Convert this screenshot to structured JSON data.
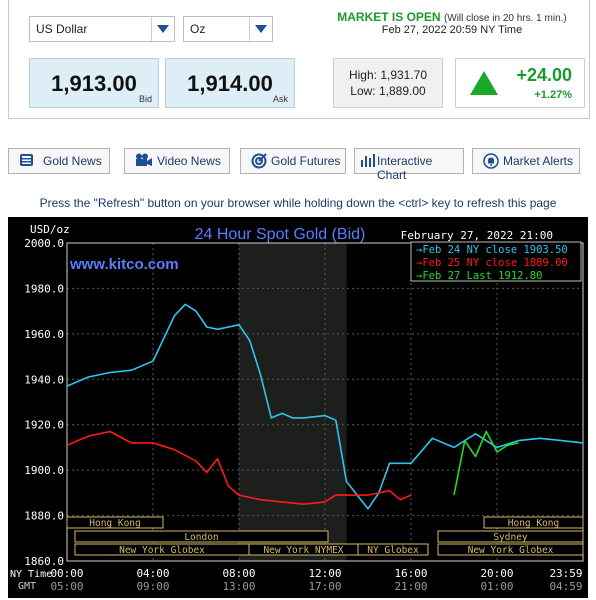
{
  "selectors": {
    "currency": "US Dollar",
    "unit": "Oz"
  },
  "market": {
    "status": "MARKET IS OPEN",
    "status_note": "(Will close in 20 hrs. 1 min.)",
    "time": "Feb 27, 2022 20:59 NY Time"
  },
  "bid": {
    "value": "1,913.00",
    "label": "Bid"
  },
  "ask": {
    "value": "1,914.00",
    "label": "Ask"
  },
  "range": {
    "high": "High: 1,931.70",
    "low": "Low: 1,889.00"
  },
  "change": {
    "abs": "+24.00",
    "pct": "+1.27%",
    "color": "#1a9a2a"
  },
  "nav": [
    {
      "label": "Gold News",
      "icon": "newspaper-icon"
    },
    {
      "label": "Video News",
      "icon": "video-camera-icon"
    },
    {
      "label": "Gold Futures",
      "icon": "target-icon"
    },
    {
      "label": "Interactive Chart",
      "icon": "bar-chart-icon"
    },
    {
      "label": "Market Alerts",
      "icon": "bell-icon"
    }
  ],
  "instruction": "Press the \"Refresh\" button on your browser while holding down the <ctrl> key to refresh this page",
  "chart_data": {
    "type": "line",
    "title": "24 Hour Spot Gold (Bid)",
    "watermark": "www.kitco.com",
    "unit_label": "USD/oz",
    "date_label": "February 27, 2022 21:00",
    "ylim": [
      1860,
      2000
    ],
    "y_ticks": [
      "2000.0",
      "1980.0",
      "1960.0",
      "1940.0",
      "1920.0",
      "1900.0",
      "1880.0",
      "1860.0"
    ],
    "x_label_ny": "NY Time",
    "x_label_gmt": "GMT",
    "x_ticks_ny": [
      "00:00",
      "04:00",
      "08:00",
      "12:00",
      "16:00",
      "20:00",
      "23:59"
    ],
    "x_ticks_gmt": [
      "05:00",
      "09:00",
      "13:00",
      "17:00",
      "21:00",
      "01:00",
      "04:59"
    ],
    "legend": [
      {
        "text": "Feb 24 NY close 1903.50",
        "color": "#2ec5ee"
      },
      {
        "text": "Feb 25 NY close 1889.00",
        "color": "#ff1a1a"
      },
      {
        "text": "Feb 27 Last 1912.80",
        "color": "#22dd22"
      }
    ],
    "sessions": [
      "Hong Kong",
      "London",
      "New York Globex",
      "New York NYMEX",
      "NY Globex",
      "Hong Kong",
      "Sydney",
      "New York Globex"
    ],
    "series": [
      {
        "name": "Feb 24 NY close 1903.50",
        "color": "#2ec5ee",
        "x": [
          0,
          1,
          2,
          3,
          4,
          5,
          5.5,
          6,
          6.5,
          7,
          8,
          8.5,
          9,
          9.5,
          10,
          10.5,
          11,
          12,
          12.5,
          13,
          14,
          14.5,
          15,
          15.5,
          16,
          17,
          18,
          19,
          20,
          21,
          22,
          23,
          24
        ],
        "y": [
          1937,
          1941,
          1943,
          1944,
          1948,
          1968,
          1973,
          1970,
          1963,
          1962,
          1964,
          1957,
          1942,
          1923,
          1925,
          1923,
          1923,
          1924,
          1922,
          1895,
          1883,
          1890,
          1903,
          1903,
          1903,
          1914,
          1910,
          1916,
          1910,
          1913,
          1914,
          1913,
          1912
        ]
      },
      {
        "name": "Feb 25 NY close 1889.00",
        "color": "#ff1a1a",
        "x": [
          0,
          1,
          2,
          3,
          4,
          5,
          6,
          6.5,
          7,
          7.5,
          8,
          9,
          10,
          11,
          12,
          12.5,
          13,
          14,
          15,
          15.5,
          16
        ],
        "y": [
          1911,
          1915,
          1917,
          1912,
          1912,
          1909,
          1904,
          1899,
          1905,
          1893,
          1889,
          1887,
          1886,
          1885,
          1886,
          1889,
          1889,
          1889,
          1891,
          1887,
          1889
        ]
      },
      {
        "name": "Feb 27 Last 1912.80",
        "color": "#22dd22",
        "x": [
          18,
          18.5,
          19,
          19.5,
          20,
          20.5,
          21
        ],
        "y": [
          1889,
          1913,
          1906,
          1917,
          1908,
          1911,
          1912
        ]
      }
    ]
  }
}
